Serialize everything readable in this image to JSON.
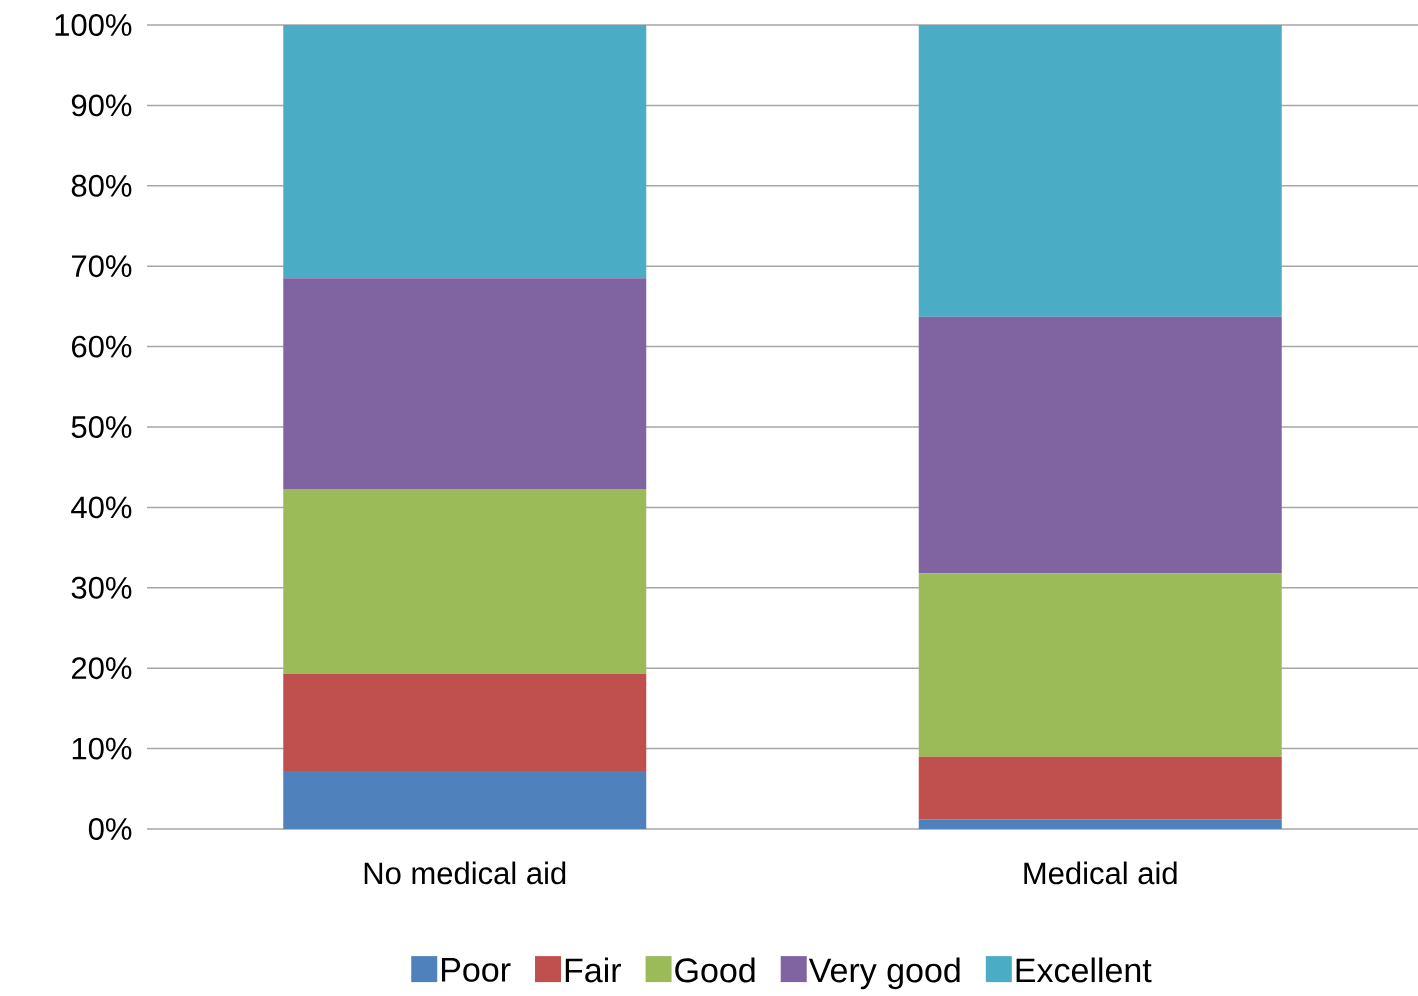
{
  "chart_data": {
    "type": "bar",
    "stacked": true,
    "categories": [
      "No medical aid",
      "Medical aid"
    ],
    "series": [
      {
        "name": "Poor",
        "color": "#4f81bd",
        "values": [
          7.2,
          1.2
        ]
      },
      {
        "name": "Fair",
        "color": "#c0504d",
        "values": [
          12.1,
          7.8
        ]
      },
      {
        "name": "Good",
        "color": "#9bbb59",
        "values": [
          23.0,
          22.8
        ]
      },
      {
        "name": "Very good",
        "color": "#8064a2",
        "values": [
          26.2,
          31.9
        ]
      },
      {
        "name": "Excellent",
        "color": "#4bacc6",
        "values": [
          31.5,
          36.3
        ]
      }
    ],
    "ylim": [
      0,
      100
    ],
    "yticks": [
      {
        "value": 0,
        "label": "0%"
      },
      {
        "value": 10,
        "label": "10%"
      },
      {
        "value": 20,
        "label": "20%"
      },
      {
        "value": 30,
        "label": "30%"
      },
      {
        "value": 40,
        "label": "40%"
      },
      {
        "value": 50,
        "label": "50%"
      },
      {
        "value": 60,
        "label": "60%"
      },
      {
        "value": 70,
        "label": "70%"
      },
      {
        "value": 80,
        "label": "80%"
      },
      {
        "value": 90,
        "label": "90%"
      },
      {
        "value": 100,
        "label": "100%"
      }
    ],
    "grid": "y",
    "legend": "bottom"
  }
}
